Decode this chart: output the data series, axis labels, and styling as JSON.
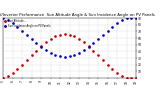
{
  "title": "Solar PV/Inverter Performance  Sun Altitude Angle & Sun Incidence Angle on PV Panels",
  "title_fontsize": 2.8,
  "background_color": "#ffffff",
  "grid_color": "#bbbbbb",
  "x_vals": [
    5.0,
    5.5,
    6.0,
    6.5,
    7.0,
    7.5,
    8.0,
    8.5,
    9.0,
    9.5,
    10.0,
    10.5,
    11.0,
    11.5,
    12.0,
    12.5,
    13.0,
    13.5,
    14.0,
    14.5,
    15.0,
    15.5,
    16.0,
    16.5,
    17.0,
    17.5,
    18.0,
    18.5,
    19.0
  ],
  "sun_altitude": [
    0,
    3,
    8,
    14,
    20,
    27,
    34,
    41,
    48,
    54,
    59,
    63,
    65,
    66,
    65,
    63,
    59,
    54,
    48,
    41,
    34,
    27,
    20,
    14,
    8,
    3,
    0,
    0,
    0
  ],
  "sun_incidence": [
    90,
    87,
    82,
    76,
    70,
    64,
    58,
    52,
    47,
    42,
    38,
    35,
    33,
    32,
    33,
    35,
    38,
    42,
    47,
    52,
    58,
    64,
    70,
    76,
    82,
    87,
    90,
    90,
    90
  ],
  "altitude_color": "#cc0000",
  "incidence_color": "#0000cc",
  "marker_size": 1.8,
  "ylim": [
    0,
    90
  ],
  "xlim": [
    5,
    19
  ],
  "xtick_positions": [
    5,
    6,
    7,
    8,
    9,
    10,
    11,
    12,
    13,
    14,
    15,
    16,
    17,
    18,
    19
  ],
  "xtick_labels": [
    "5",
    "6",
    "7",
    "8",
    "9",
    "10",
    "11",
    "12",
    "13",
    "14",
    "15",
    "16",
    "17",
    "18",
    "19"
  ],
  "ytick_vals": [
    10,
    20,
    30,
    40,
    50,
    60,
    70,
    80,
    90
  ],
  "legend_altitude": "Sun Altitude --",
  "legend_incidence": "Sun Incidence Angle on PV Panels"
}
